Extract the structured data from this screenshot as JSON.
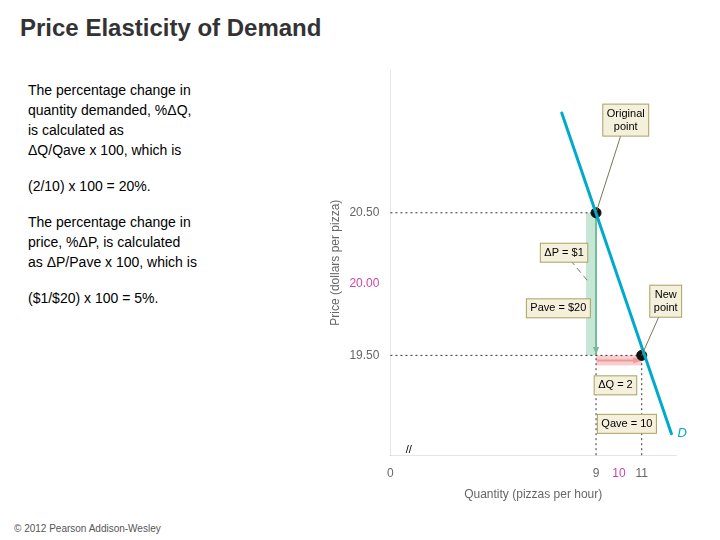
{
  "chart_data": {
    "type": "line",
    "title": "Price Elasticity of Demand",
    "xlabel": "Quantity (pizzas per hour)",
    "ylabel": "Price (dollars per pizza)",
    "xlim": [
      0,
      12.5
    ],
    "ylim": [
      18.8,
      21.5
    ],
    "xticks": [
      0,
      9,
      {
        "value": 10,
        "label": "10",
        "color": "#cc44aa"
      },
      11
    ],
    "yticks": [
      {
        "value": 19.5,
        "label": "19.50"
      },
      {
        "value": 20,
        "label": "20.00",
        "color": "#cc44aa"
      },
      {
        "value": 20.5,
        "label": "20.50"
      }
    ],
    "grid": false,
    "series": [
      {
        "name": "D",
        "color": "#00aacc",
        "x": [
          7.5,
          12.3
        ],
        "values": [
          21.2,
          18.95
        ],
        "marker": "none",
        "line_style": "solid"
      },
      {
        "color": "#111111",
        "x": [
          9,
          11
        ],
        "values": [
          20.5,
          19.5
        ],
        "type": "scatter",
        "marker": "circle"
      }
    ],
    "annotations": [
      {
        "text": "Original\npoint",
        "x": 10.3,
        "y": 21.15,
        "xy": [
          9,
          20.5
        ]
      },
      {
        "text": "New\npoint",
        "x": 12.05,
        "y": 19.88,
        "xy": [
          11,
          19.5
        ]
      },
      {
        "text": "ΔP = $1",
        "x": 7.6,
        "y": 20.22,
        "xy": [
          8.65,
          20.02
        ],
        "line_style": "dashed"
      },
      {
        "text": "Pave = $20",
        "x": 7.35,
        "y": 19.83
      },
      {
        "text": "ΔQ = 2",
        "x": 9.85,
        "y": 19.29
      },
      {
        "text": "Qave = 10",
        "x": 10.35,
        "y": 19.02
      },
      {
        "text": "//",
        "x": 0.8,
        "y": 18.84,
        "box": false
      }
    ],
    "notes": [
      [
        "The percentage change in",
        "quantity demanded, %ΔQ,",
        "is calculated as",
        "ΔQ/Qave x 100, which is"
      ],
      [
        "(2/10) x 100 = 20%."
      ],
      [
        "The percentage change in",
        "price, %ΔP, is calculated",
        "as ΔP/Pave x 100, which is"
      ],
      [
        "($1/$20) x 100 = 5%."
      ]
    ],
    "footer": "© 2012 Pearson Addison-Wesley"
  }
}
